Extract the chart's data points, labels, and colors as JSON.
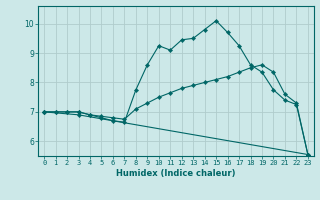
{
  "title": "",
  "xlabel": "Humidex (Indice chaleur)",
  "xlim": [
    -0.5,
    23.5
  ],
  "ylim": [
    5.5,
    10.6
  ],
  "yticks": [
    6,
    7,
    8,
    9,
    10
  ],
  "xticks": [
    0,
    1,
    2,
    3,
    4,
    5,
    6,
    7,
    8,
    9,
    10,
    11,
    12,
    13,
    14,
    15,
    16,
    17,
    18,
    19,
    20,
    21,
    22,
    23
  ],
  "bg_color": "#cce8e8",
  "line_color": "#006666",
  "grid_color": "#b0cccc",
  "line1_x": [
    0,
    1,
    2,
    3,
    4,
    5,
    6,
    7,
    8,
    9,
    10,
    11,
    12,
    13,
    14,
    15,
    16,
    17,
    18,
    19,
    20,
    21,
    22,
    23
  ],
  "line1_y": [
    7.0,
    7.0,
    7.0,
    7.0,
    6.9,
    6.8,
    6.7,
    6.65,
    7.75,
    8.6,
    9.25,
    9.1,
    9.45,
    9.5,
    9.8,
    10.1,
    9.7,
    9.25,
    8.6,
    8.35,
    7.75,
    7.4,
    7.25,
    5.55
  ],
  "line2_x": [
    0,
    1,
    2,
    3,
    4,
    5,
    6,
    7,
    8,
    9,
    10,
    11,
    12,
    13,
    14,
    15,
    16,
    17,
    18,
    19,
    20,
    21,
    22,
    23
  ],
  "line2_y": [
    7.0,
    7.0,
    7.0,
    7.0,
    6.9,
    6.85,
    6.8,
    6.75,
    7.1,
    7.3,
    7.5,
    7.65,
    7.8,
    7.9,
    8.0,
    8.1,
    8.2,
    8.35,
    8.5,
    8.6,
    8.35,
    7.6,
    7.3,
    5.55
  ],
  "line3_x": [
    0,
    3,
    23
  ],
  "line3_y": [
    7.0,
    6.9,
    5.55
  ]
}
